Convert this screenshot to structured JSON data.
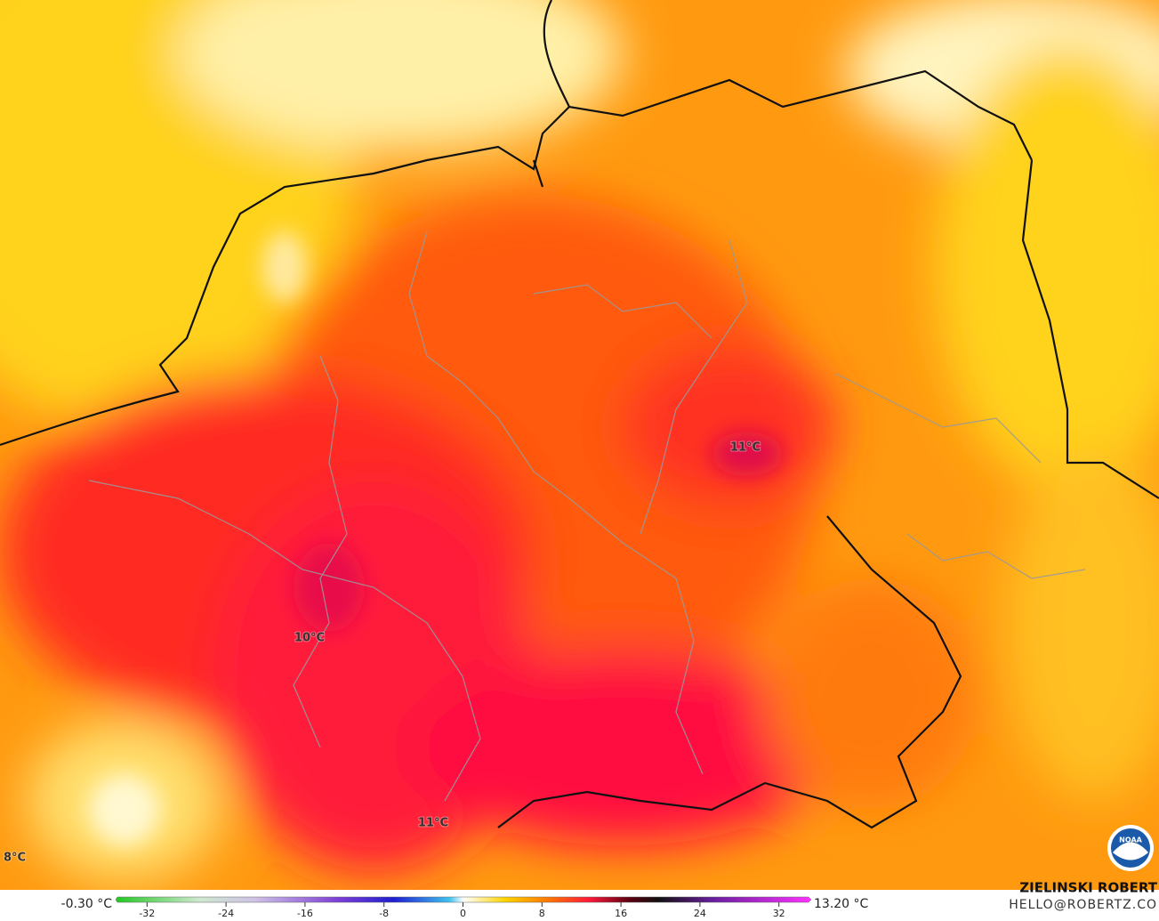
{
  "map": {
    "labels": [
      "11°C",
      "10°C",
      "11°C",
      "8°C"
    ]
  },
  "colorbar": {
    "min_label": "-0.30 °C",
    "max_label": "13.20 °C",
    "range": [
      -35,
      35
    ],
    "ticks": [
      -32,
      -24,
      -16,
      -8,
      0,
      8,
      16,
      24,
      32
    ]
  },
  "credit": {
    "name": "ZIELINSKI ROBERT",
    "email": "HELLO@ROBERTZ.CO"
  }
}
